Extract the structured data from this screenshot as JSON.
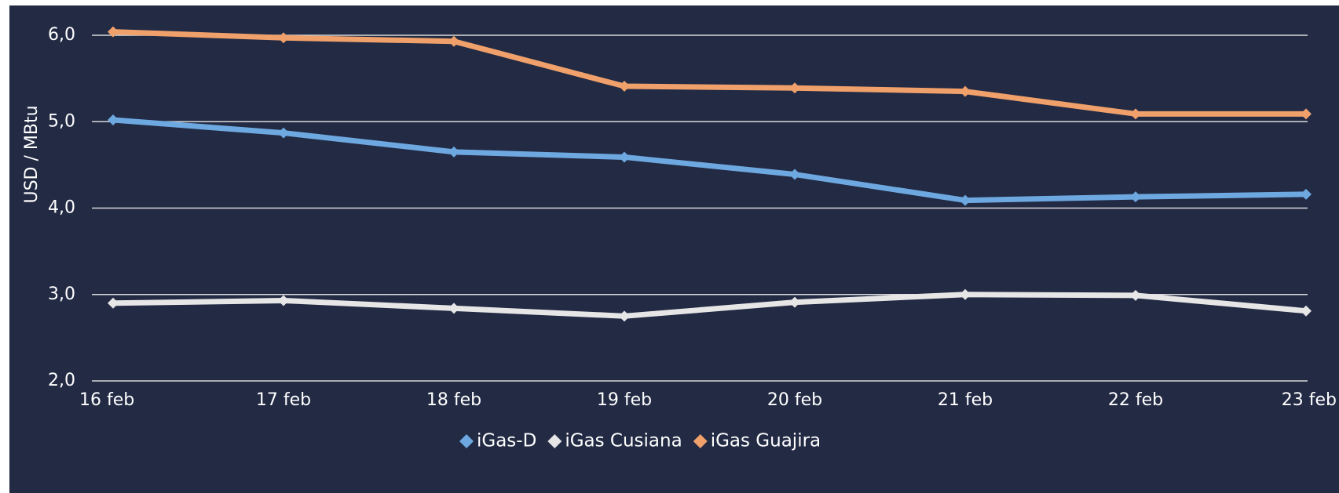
{
  "chart_data": {
    "type": "line",
    "categories": [
      "16 feb",
      "17 feb",
      "18 feb",
      "19 feb",
      "20 feb",
      "21 feb",
      "22 feb",
      "23 feb"
    ],
    "series": [
      {
        "name": "iGas-D",
        "color": "#6ea8e0",
        "marker": "diamond",
        "values": [
          5.02,
          4.87,
          4.65,
          4.59,
          4.39,
          4.09,
          4.13,
          4.16
        ]
      },
      {
        "name": "iGas Cusiana",
        "color": "#e6e6e6",
        "marker": "diamond",
        "values": [
          2.9,
          2.93,
          2.84,
          2.75,
          2.91,
          3.0,
          2.99,
          2.81
        ]
      },
      {
        "name": "iGas Guajira",
        "color": "#f0a06a",
        "marker": "diamond",
        "values": [
          6.04,
          5.97,
          5.93,
          5.41,
          5.39,
          5.35,
          5.09,
          5.09
        ]
      }
    ],
    "yticks": [
      "2,0",
      "3,0",
      "4,0",
      "5,0",
      "6,0"
    ],
    "ylim": [
      2.0,
      6.0
    ],
    "ylabel": "USD / MBtu",
    "xlabel": "",
    "title": "",
    "grid": true,
    "legend_position": "bottom-center",
    "background_color": "#222a44",
    "gridline_color": "#d9d9d9",
    "text_color": "#ffffff"
  }
}
